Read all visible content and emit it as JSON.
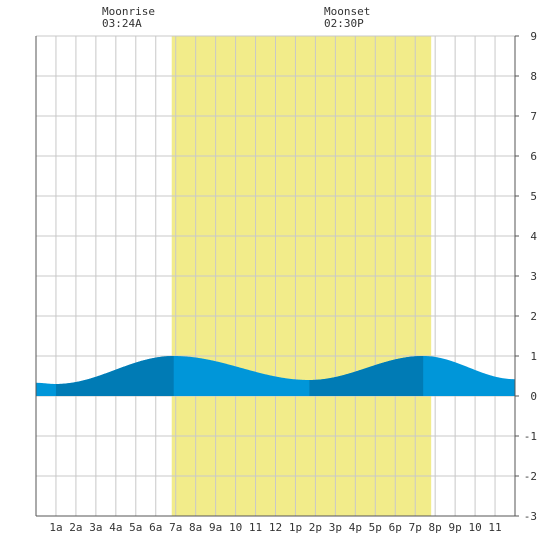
{
  "moonrise": {
    "label": "Moonrise",
    "time": "03:24A"
  },
  "moonset": {
    "label": "Moonset",
    "time": "02:30P"
  },
  "colors": {
    "daylight": "#f2ec8a",
    "tide_day": "#0096d9",
    "tide_night": "#007bb5",
    "grid": "#c8c8c8",
    "axis": "#555555"
  },
  "chart_data": {
    "type": "area",
    "xlim": [
      0,
      24
    ],
    "ylim": [
      -3,
      9
    ],
    "x_ticks": [
      {
        "x": 1,
        "label": "1a"
      },
      {
        "x": 2,
        "label": "2a"
      },
      {
        "x": 3,
        "label": "3a"
      },
      {
        "x": 4,
        "label": "4a"
      },
      {
        "x": 5,
        "label": "5a"
      },
      {
        "x": 6,
        "label": "6a"
      },
      {
        "x": 7,
        "label": "7a"
      },
      {
        "x": 8,
        "label": "8a"
      },
      {
        "x": 9,
        "label": "9a"
      },
      {
        "x": 10,
        "label": "10"
      },
      {
        "x": 11,
        "label": "11"
      },
      {
        "x": 12,
        "label": "12"
      },
      {
        "x": 13,
        "label": "1p"
      },
      {
        "x": 14,
        "label": "2p"
      },
      {
        "x": 15,
        "label": "3p"
      },
      {
        "x": 16,
        "label": "4p"
      },
      {
        "x": 17,
        "label": "5p"
      },
      {
        "x": 18,
        "label": "6p"
      },
      {
        "x": 19,
        "label": "7p"
      },
      {
        "x": 20,
        "label": "8p"
      },
      {
        "x": 21,
        "label": "9p"
      },
      {
        "x": 22,
        "label": "10"
      },
      {
        "x": 23,
        "label": "11"
      }
    ],
    "y_ticks": [
      9,
      8,
      7,
      6,
      5,
      4,
      3,
      2,
      1,
      0,
      -1,
      -2,
      -3
    ],
    "daylight": {
      "start": 6.8,
      "end": 19.8
    },
    "tide_extremes": [
      {
        "x": 1.0,
        "y": 0.3
      },
      {
        "x": 6.9,
        "y": 1.0
      },
      {
        "x": 13.7,
        "y": 0.4
      },
      {
        "x": 19.4,
        "y": 1.0
      }
    ],
    "tide_edges": [
      {
        "x": 0,
        "y": 0.33
      },
      {
        "x": 24,
        "y": 0.42
      }
    ],
    "night_bands": [
      {
        "start": 1.0,
        "end": 6.9
      },
      {
        "start": 13.7,
        "end": 19.4
      }
    ]
  }
}
